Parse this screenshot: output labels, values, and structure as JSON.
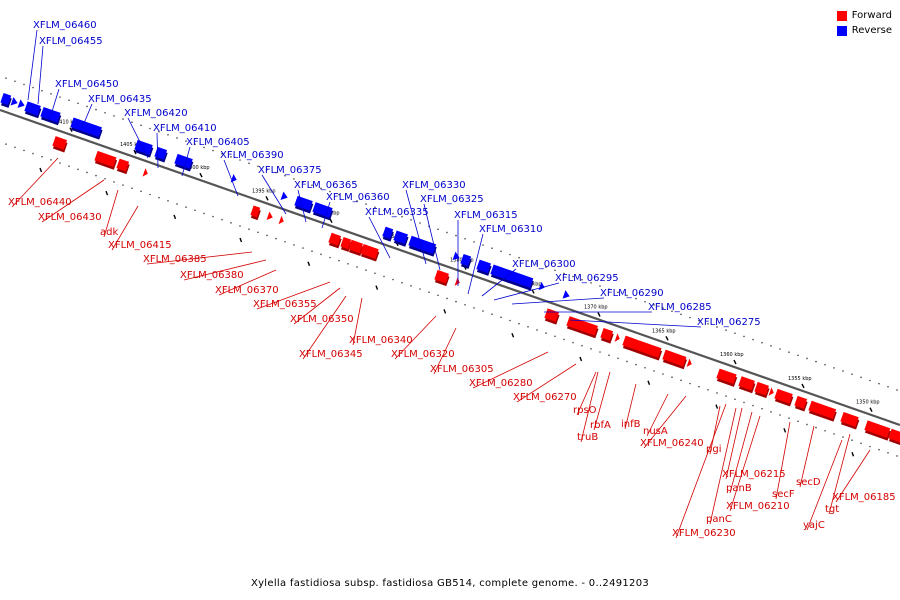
{
  "legend": {
    "forward": "Forward",
    "reverse": "Reverse"
  },
  "colors": {
    "forward": "#ff0000",
    "reverse": "#0000ff",
    "forwardLabel": "#d40000",
    "reverseLabel": "#0000cc",
    "axis": "#555555"
  },
  "caption": "Xylella fastidiosa subsp. fastidiosa GB514, complete genome. - 0..2491203",
  "scale": {
    "ticks": [
      "1410 kbp",
      "1405 kbp",
      "1400 kbp",
      "1395 kbp",
      "1390 kbp",
      "1385 kbp",
      "1380 kbp",
      "1375 kbp",
      "1370 kbp",
      "1365 kbp",
      "1360 kbp",
      "1355 kbp",
      "1350 kbp"
    ]
  },
  "reverse_labels": [
    "XFLM_06460",
    "XFLM_06455",
    "XFLM_06450",
    "XFLM_06435",
    "XFLM_06420",
    "XFLM_06410",
    "XFLM_06405",
    "XFLM_06390",
    "XFLM_06375",
    "XFLM_06365",
    "XFLM_06360",
    "XFLM_06335",
    "XFLM_06330",
    "XFLM_06325",
    "XFLM_06315",
    "XFLM_06310",
    "XFLM_06300",
    "XFLM_06295",
    "XFLM_06290",
    "XFLM_06285",
    "XFLM_06275"
  ],
  "forward_labels": [
    "XFLM_06440",
    "XFLM_06430",
    "adk",
    "XFLM_06415",
    "XFLM_06385",
    "XFLM_06380",
    "XFLM_06370",
    "XFLM_06355",
    "XFLM_06350",
    "XFLM_06345",
    "XFLM_06340",
    "XFLM_06320",
    "XFLM_06305",
    "XFLM_06280",
    "XFLM_06270",
    "rpsO",
    "rbfA",
    "truB",
    "infB",
    "nusA",
    "XFLM_06240",
    "pgi",
    "XFLM_06215",
    "panB",
    "secF",
    "XFLM_06210",
    "secD",
    "panC",
    "XFLM_06185",
    "tgt",
    "yajC",
    "XFLM_06230"
  ]
}
